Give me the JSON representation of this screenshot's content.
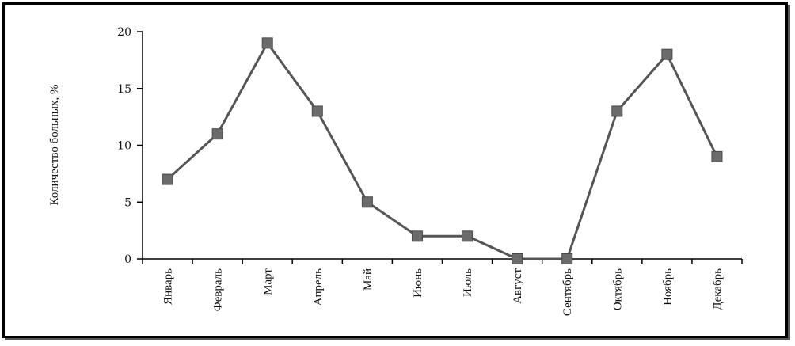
{
  "chart_data": {
    "type": "line",
    "categories": [
      "Январь",
      "Февраль",
      "Март",
      "Апрель",
      "Май",
      "Июнь",
      "Июль",
      "Август",
      "Сентябрь",
      "Октябрь",
      "Ноябрь",
      "Декабрь"
    ],
    "series": [
      {
        "values": [
          7,
          11,
          19,
          13,
          5,
          2,
          2,
          0,
          0,
          13,
          18,
          9
        ]
      }
    ],
    "ylabel": "Количество больных, %",
    "ylim": [
      0,
      20
    ],
    "yticks": [
      0,
      5,
      10,
      15,
      20
    ],
    "grid": false,
    "legend": "none",
    "line_color": "#555555",
    "marker_color": "#6b6b6b"
  }
}
